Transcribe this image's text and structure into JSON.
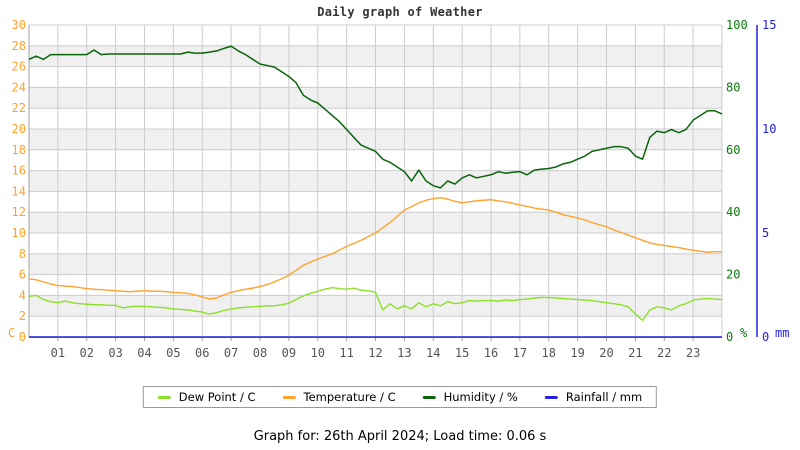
{
  "title": "Daily graph of Weather",
  "footer": "Graph for: 26th April 2024; Load time: 0.06 s",
  "chart_data": {
    "type": "line",
    "title": "Daily graph of Weather",
    "x_hours_range": [
      0,
      24
    ],
    "x_tick_labels": [
      "01",
      "02",
      "03",
      "04",
      "05",
      "06",
      "07",
      "08",
      "09",
      "10",
      "11",
      "12",
      "13",
      "14",
      "15",
      "16",
      "17",
      "18",
      "19",
      "20",
      "21",
      "22",
      "23"
    ],
    "grid": true,
    "legend_position": "bottom",
    "colors": {
      "grid": "#cccccc",
      "band": "#f0f0f0",
      "axis": "#a0a0a0",
      "x_text": "#555555",
      "title_text": "#333333"
    },
    "axes": {
      "left": {
        "unit": "C",
        "color": "#ffa22e",
        "min": 0,
        "max": 30,
        "ticks": [
          0,
          2,
          4,
          6,
          8,
          10,
          12,
          14,
          16,
          18,
          20,
          22,
          24,
          26,
          28,
          30
        ]
      },
      "humidity": {
        "unit": "%",
        "color": "#0a7a0a",
        "min": 0,
        "max": 100,
        "ticks": [
          0,
          20,
          40,
          60,
          80,
          100
        ]
      },
      "rain": {
        "unit": "mm",
        "color": "#2222e0",
        "min": 0,
        "max": 15,
        "ticks": [
          0,
          5,
          10,
          15
        ]
      }
    },
    "series": [
      {
        "id": "humidity",
        "name": "Humidity / %",
        "axis": "humidity",
        "color": "#0a640a",
        "stroke_width": 1.5,
        "x_step_hours": 0.25,
        "values": [
          89,
          90,
          89,
          90.5,
          90.5,
          90.5,
          90.5,
          90.5,
          90.5,
          92,
          90.5,
          90.7,
          90.7,
          90.7,
          90.7,
          90.7,
          90.7,
          90.7,
          90.7,
          90.7,
          90.7,
          90.7,
          91.3,
          91,
          91,
          91.3,
          91.7,
          92.5,
          93.2,
          91.7,
          90.5,
          89,
          87.5,
          87,
          86.5,
          85,
          83.5,
          81.5,
          77.5,
          76,
          75,
          73,
          71,
          69,
          66.5,
          64,
          61.5,
          60.5,
          59.5,
          57,
          56,
          54.5,
          53,
          50,
          53.5,
          50,
          48.5,
          47.8,
          50,
          49,
          51,
          52,
          51,
          51.5,
          52,
          53,
          52.5,
          52.8,
          53,
          52,
          53.5,
          53.8,
          54,
          54.5,
          55.5,
          56,
          57,
          58,
          59.5,
          60,
          60.5,
          61,
          61,
          60.5,
          58,
          57,
          64,
          66,
          65.5,
          66.5,
          65.5,
          66.5,
          69.5,
          71,
          72.5,
          72.5,
          71.5
        ]
      },
      {
        "id": "temperature",
        "name": "Temperature / C",
        "axis": "left",
        "color": "#ffa22e",
        "stroke_width": 1.4,
        "x_step_hours": 0.25,
        "values": [
          5.6,
          5.5,
          5.3,
          5.1,
          4.95,
          4.9,
          4.85,
          4.75,
          4.65,
          4.6,
          4.55,
          4.5,
          4.45,
          4.4,
          4.35,
          4.4,
          4.45,
          4.4,
          4.4,
          4.35,
          4.3,
          4.25,
          4.2,
          4.05,
          3.85,
          3.65,
          3.75,
          4.05,
          4.3,
          4.45,
          4.6,
          4.7,
          4.85,
          5.05,
          5.3,
          5.6,
          5.95,
          6.4,
          6.9,
          7.2,
          7.5,
          7.75,
          8.0,
          8.35,
          8.7,
          9.0,
          9.3,
          9.65,
          10.0,
          10.5,
          11.0,
          11.6,
          12.2,
          12.55,
          12.9,
          13.15,
          13.3,
          13.4,
          13.25,
          13.05,
          12.9,
          13.0,
          13.1,
          13.15,
          13.2,
          13.1,
          13.0,
          12.85,
          12.7,
          12.55,
          12.4,
          12.3,
          12.2,
          12.0,
          11.75,
          11.6,
          11.45,
          11.25,
          11.0,
          10.8,
          10.6,
          10.3,
          10.05,
          9.8,
          9.55,
          9.3,
          9.05,
          8.9,
          8.8,
          8.7,
          8.6,
          8.45,
          8.35,
          8.25,
          8.15,
          8.2,
          8.2
        ]
      },
      {
        "id": "dew-point",
        "name": "Dew Point / C",
        "axis": "left",
        "color": "#8de02a",
        "stroke_width": 1.4,
        "x_step_hours": 0.25,
        "values": [
          3.9,
          4.0,
          3.6,
          3.4,
          3.3,
          3.45,
          3.3,
          3.2,
          3.15,
          3.1,
          3.1,
          3.05,
          3.05,
          2.8,
          2.9,
          2.95,
          2.95,
          2.9,
          2.85,
          2.8,
          2.7,
          2.65,
          2.6,
          2.5,
          2.4,
          2.2,
          2.35,
          2.55,
          2.7,
          2.8,
          2.85,
          2.9,
          2.95,
          3.0,
          3.0,
          3.1,
          3.25,
          3.6,
          3.95,
          4.2,
          4.4,
          4.6,
          4.75,
          4.65,
          4.6,
          4.7,
          4.5,
          4.45,
          4.3,
          2.6,
          3.2,
          2.7,
          3.0,
          2.7,
          3.3,
          2.9,
          3.2,
          3.0,
          3.4,
          3.2,
          3.3,
          3.5,
          3.45,
          3.5,
          3.5,
          3.45,
          3.55,
          3.5,
          3.6,
          3.65,
          3.75,
          3.8,
          3.8,
          3.75,
          3.7,
          3.65,
          3.6,
          3.55,
          3.5,
          3.4,
          3.3,
          3.2,
          3.1,
          2.9,
          2.2,
          1.6,
          2.6,
          2.9,
          2.8,
          2.6,
          3.0,
          3.2,
          3.55,
          3.65,
          3.7,
          3.65,
          3.6
        ]
      },
      {
        "id": "rainfall",
        "name": "Rainfall / mm",
        "axis": "rain",
        "color": "#2222e0",
        "stroke_width": 1.5,
        "x_step_hours": 0.25,
        "values": [
          0,
          0,
          0,
          0,
          0,
          0,
          0,
          0,
          0,
          0,
          0,
          0,
          0,
          0,
          0,
          0,
          0,
          0,
          0,
          0,
          0,
          0,
          0,
          0,
          0,
          0,
          0,
          0,
          0,
          0,
          0,
          0,
          0,
          0,
          0,
          0,
          0,
          0,
          0,
          0,
          0,
          0,
          0,
          0,
          0,
          0,
          0,
          0,
          0,
          0,
          0,
          0,
          0,
          0,
          0,
          0,
          0,
          0,
          0,
          0,
          0,
          0,
          0,
          0,
          0,
          0,
          0,
          0,
          0,
          0,
          0,
          0,
          0,
          0,
          0,
          0,
          0,
          0,
          0,
          0,
          0,
          0,
          0,
          0,
          0,
          0,
          0,
          0,
          0,
          0,
          0,
          0,
          0,
          0,
          0,
          0,
          0
        ]
      }
    ],
    "legend_order": [
      "dew-point",
      "temperature",
      "humidity",
      "rainfall"
    ]
  }
}
